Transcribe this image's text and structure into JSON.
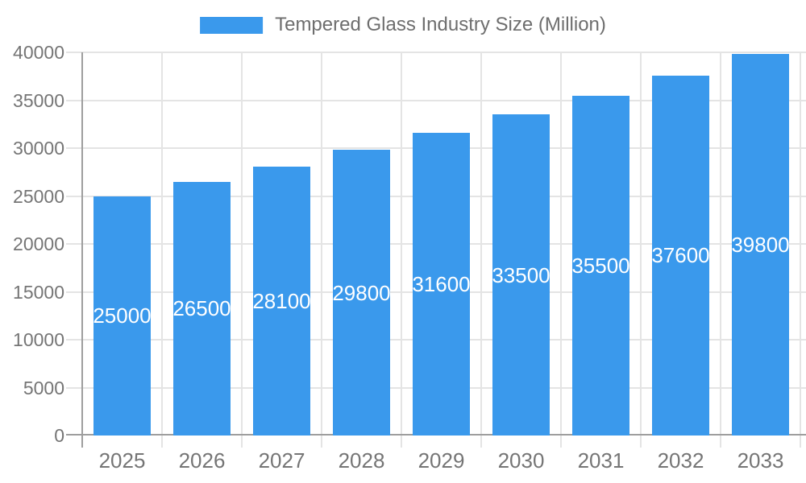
{
  "chart_data": {
    "type": "bar",
    "title": "Tempered Glass Industry Size (Million)",
    "categories": [
      "2025",
      "2026",
      "2027",
      "2028",
      "2029",
      "2030",
      "2031",
      "2032",
      "2033"
    ],
    "values": [
      25000,
      26500,
      28100,
      29800,
      31600,
      33500,
      35500,
      37600,
      39800
    ],
    "series": [
      {
        "name": "Tempered Glass Industry Size (Million)",
        "values": [
          25000,
          26500,
          28100,
          29800,
          31600,
          33500,
          35500,
          37600,
          39800
        ]
      }
    ],
    "xlabel": "",
    "ylabel": "",
    "ylim": [
      0,
      40000
    ],
    "yticks": [
      0,
      5000,
      10000,
      15000,
      20000,
      25000,
      30000,
      35000,
      40000
    ],
    "grid": "on",
    "legend_position": "top-center",
    "bar_labels_inside": true,
    "colors": {
      "bar": "#3A99EC",
      "bar_label_text": "#FFFFFF",
      "grid_line": "#E4E4E4",
      "axis_line": "#9E9E9E",
      "tick_text": "#757575",
      "legend_text": "#6E6E6E",
      "background": "#FFFFFF"
    }
  }
}
